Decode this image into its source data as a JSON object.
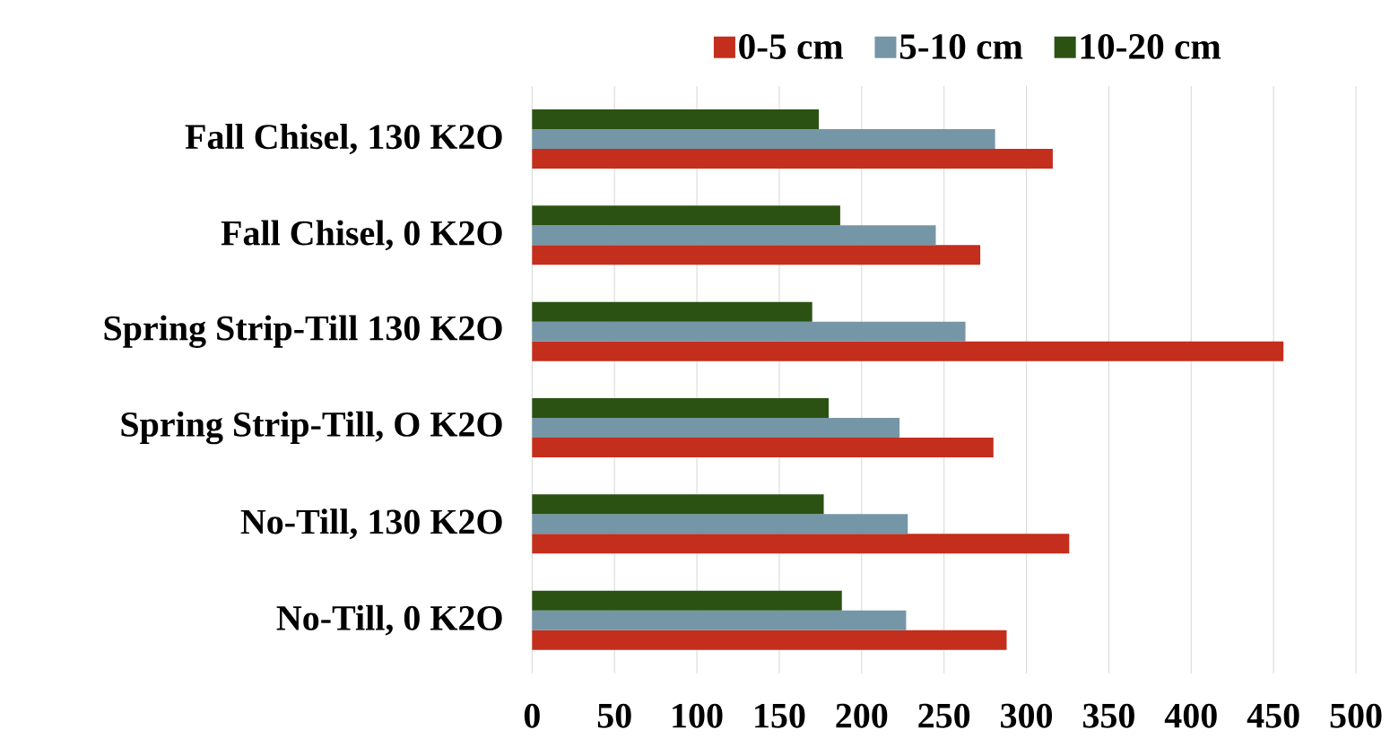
{
  "chart_data": {
    "type": "bar",
    "orientation": "horizontal",
    "categories": [
      "Fall Chisel, 130 K2O",
      "Fall Chisel, 0 K2O",
      "Spring Strip-Till 130 K2O",
      "Spring Strip-Till, O K2O",
      "No-Till, 130 K2O",
      "No-Till, 0 K2O"
    ],
    "series": [
      {
        "name": "0-5 cm",
        "color": "#c42e1c",
        "values": [
          316,
          272,
          456,
          280,
          326,
          288
        ]
      },
      {
        "name": "5-10 cm",
        "color": "#7596a6",
        "values": [
          281,
          245,
          263,
          223,
          228,
          227
        ]
      },
      {
        "name": "10-20 cm",
        "color": "#2b5213",
        "values": [
          174,
          187,
          170,
          180,
          177,
          188
        ]
      }
    ],
    "xlim": [
      0,
      500
    ],
    "xticks": [
      0,
      50,
      100,
      150,
      200,
      250,
      300,
      350,
      400,
      450,
      500
    ],
    "grid": "x",
    "legend": "top"
  }
}
